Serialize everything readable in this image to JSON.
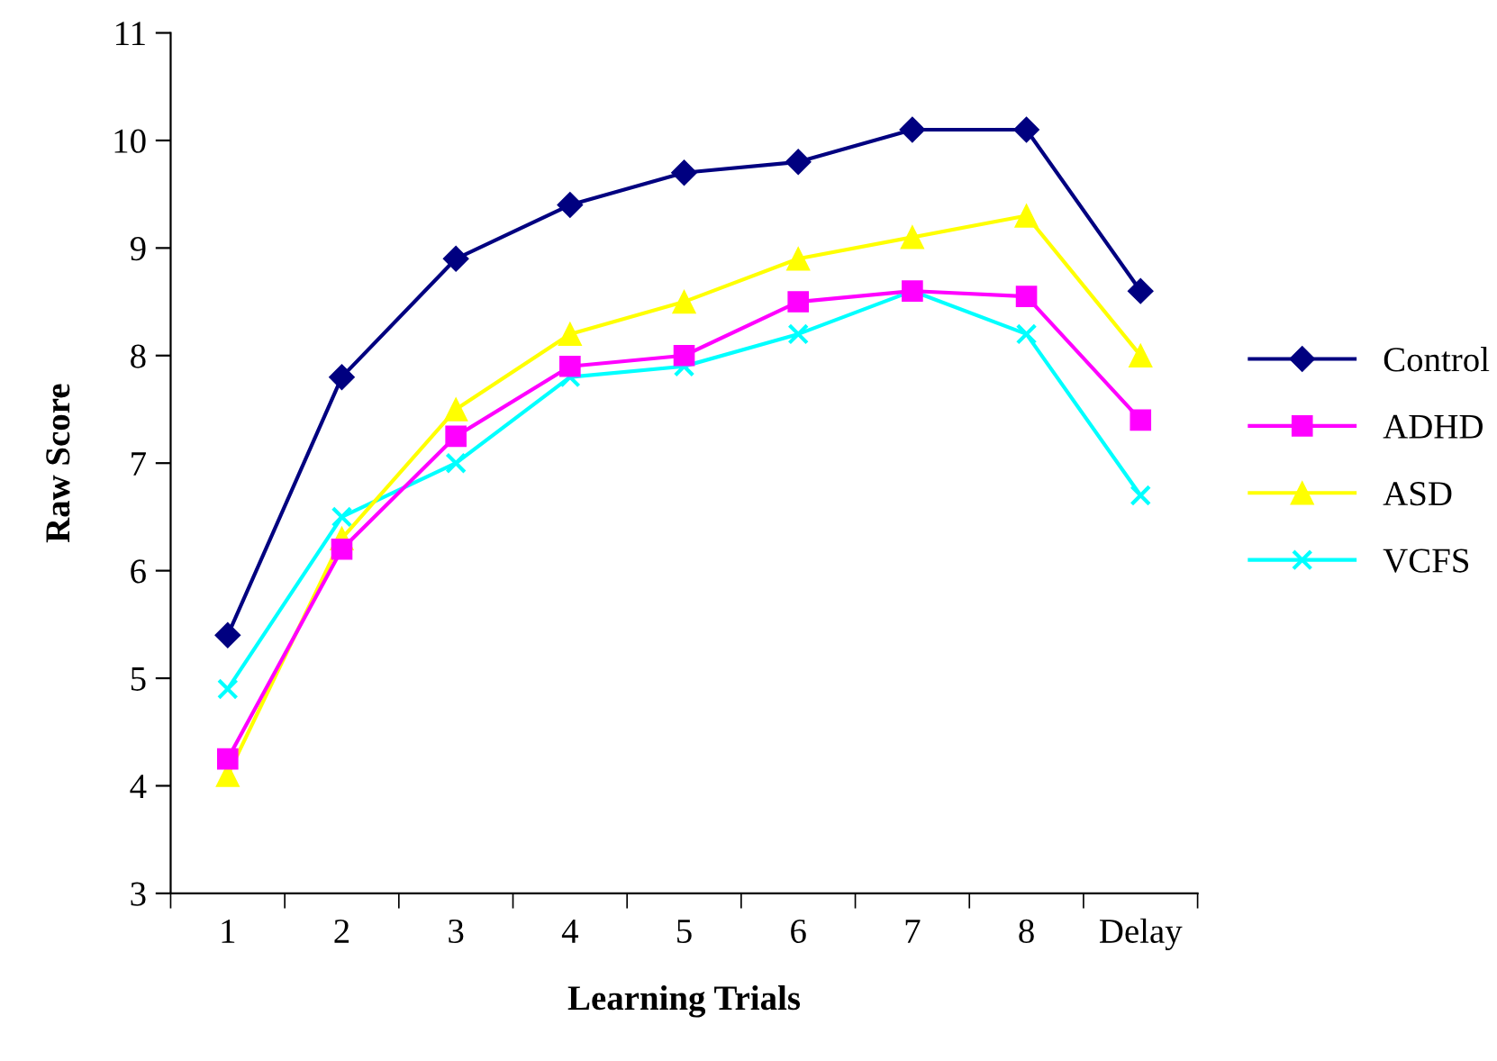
{
  "chart_data": {
    "type": "line",
    "xlabel": "Learning Trials",
    "ylabel": "Raw Score",
    "categories": [
      "1",
      "2",
      "3",
      "4",
      "5",
      "6",
      "7",
      "8",
      "Delay"
    ],
    "ylim": [
      3,
      11
    ],
    "yticks": [
      3,
      4,
      5,
      6,
      7,
      8,
      9,
      10,
      11
    ],
    "grid": false,
    "legend": "right",
    "series": [
      {
        "name": "Control",
        "color": "#000080",
        "marker": "diamond",
        "values": [
          5.4,
          7.8,
          8.9,
          9.4,
          9.7,
          9.8,
          10.1,
          10.1,
          8.6
        ]
      },
      {
        "name": "ADHD",
        "color": "#ff00ff",
        "marker": "square",
        "values": [
          4.25,
          6.2,
          7.25,
          7.9,
          8.0,
          8.5,
          8.6,
          8.55,
          7.4
        ]
      },
      {
        "name": "ASD",
        "color": "#ffff00",
        "marker": "triangle",
        "values": [
          4.1,
          6.3,
          7.5,
          8.2,
          8.5,
          8.9,
          9.1,
          9.3,
          8.0
        ]
      },
      {
        "name": "VCFS",
        "color": "#00ffff",
        "marker": "cross",
        "values": [
          4.9,
          6.5,
          7.0,
          7.8,
          7.9,
          8.2,
          8.6,
          8.2,
          6.7
        ]
      }
    ]
  }
}
